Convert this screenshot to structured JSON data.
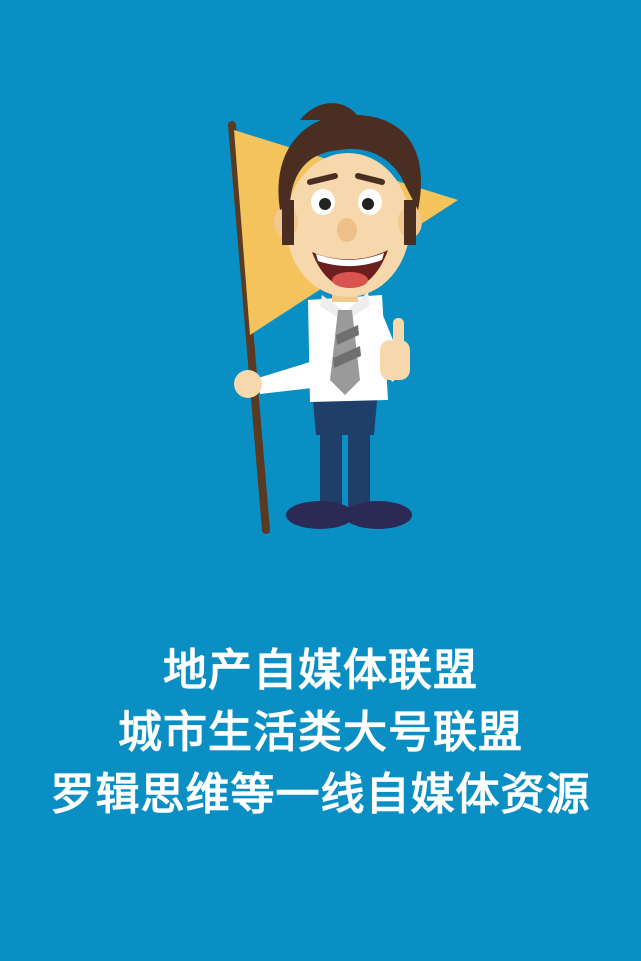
{
  "colors": {
    "background": "#0a8fc4",
    "text": "#ffffff",
    "flag": "#f5c35b",
    "pole": "#5a3a22",
    "hair": "#4a2e22",
    "skin": "#f7d8ad",
    "shirt": "#ffffff",
    "tie": "#9a9a9a",
    "pants": "#1f3f6b",
    "shoes": "#2a2a55"
  },
  "illustration": {
    "name": "cartoon-businessman-with-flag",
    "icons": [
      "flag-icon",
      "thumbs-up-icon"
    ]
  },
  "caption": {
    "lines": [
      "地产自媒体联盟",
      "城市生活类大号联盟",
      "罗辑思维等一线自媒体资源"
    ]
  }
}
